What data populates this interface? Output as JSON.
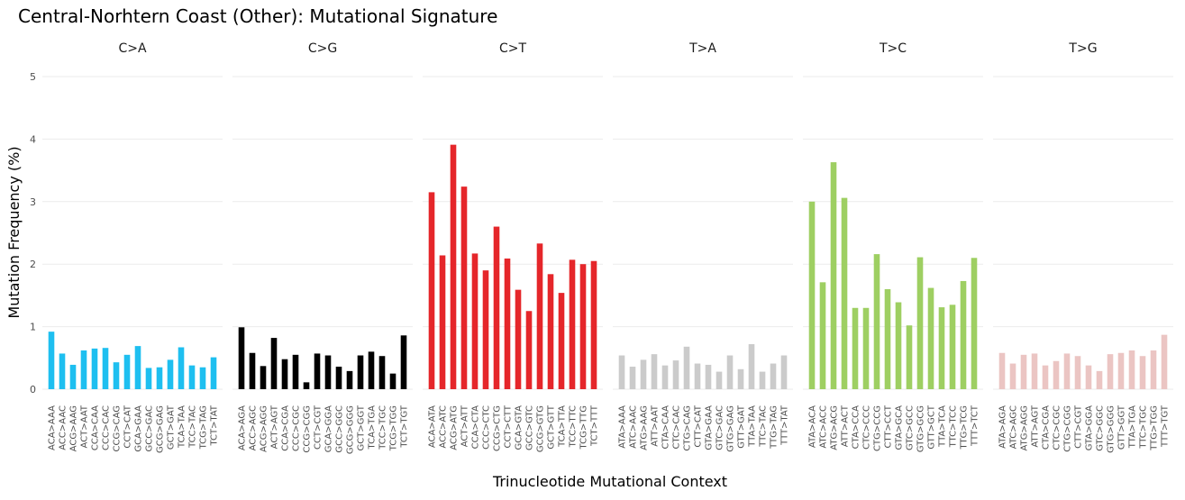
{
  "chart_data": {
    "type": "bar",
    "title": "Central-Norhtern Coast (Other): Mutational Signature",
    "xlabel": "Trinucleotide Mutational Context",
    "ylabel": "Mutation Frequency (%)",
    "ylim": [
      0,
      5
    ],
    "yticks": [
      "0",
      "1",
      "2",
      "3",
      "4",
      "5"
    ],
    "grid": true,
    "legend": "none",
    "panels": [
      {
        "name": "C>A",
        "color": "#1EBFF0",
        "categories": [
          "ACA>AAA",
          "ACC>AAC",
          "ACG>AAG",
          "ACT>AAT",
          "CCA>CAA",
          "CCC>CAC",
          "CCG>CAG",
          "CCT>CAT",
          "GCA>GAA",
          "GCC>GAC",
          "GCG>GAG",
          "GCT>GAT",
          "TCA>TAA",
          "TCC>TAC",
          "TCG>TAG",
          "TCT>TAT"
        ],
        "values": [
          0.92,
          0.57,
          0.39,
          0.62,
          0.65,
          0.66,
          0.43,
          0.55,
          0.69,
          0.34,
          0.35,
          0.47,
          0.67,
          0.38,
          0.35,
          0.51
        ]
      },
      {
        "name": "C>G",
        "color": "#000000",
        "categories": [
          "ACA>AGA",
          "ACC>AGC",
          "ACG>AGG",
          "ACT>AGT",
          "CCA>CGA",
          "CCC>CGC",
          "CCG>CGG",
          "CCT>CGT",
          "GCA>GGA",
          "GCC>GGC",
          "GCG>GGG",
          "GCT>GGT",
          "TCA>TGA",
          "TCC>TGC",
          "TCG>TGG",
          "TCT>TGT"
        ],
        "values": [
          0.99,
          0.58,
          0.37,
          0.82,
          0.48,
          0.55,
          0.11,
          0.57,
          0.54,
          0.36,
          0.29,
          0.54,
          0.6,
          0.53,
          0.25,
          0.86
        ]
      },
      {
        "name": "C>T",
        "color": "#E5262A",
        "categories": [
          "ACA>ATA",
          "ACC>ATC",
          "ACG>ATG",
          "ACT>ATT",
          "CCA>CTA",
          "CCC>CTC",
          "CCG>CTG",
          "CCT>CTT",
          "GCA>GTA",
          "GCC>GTC",
          "GCG>GTG",
          "GCT>GTT",
          "TCA>TTA",
          "TCC>TTC",
          "TCG>TTG",
          "TCT>TTT"
        ],
        "values": [
          3.15,
          2.14,
          3.91,
          3.24,
          2.17,
          1.9,
          2.6,
          2.09,
          1.59,
          1.25,
          2.33,
          1.84,
          1.54,
          2.07,
          2.0,
          2.05
        ]
      },
      {
        "name": "T>A",
        "color": "#CBCBCB",
        "categories": [
          "ATA>AAA",
          "ATC>AAC",
          "ATG>AAG",
          "ATT>AAT",
          "CTA>CAA",
          "CTC>CAC",
          "CTG>CAG",
          "CTT>CAT",
          "GTA>GAA",
          "GTC>GAC",
          "GTG>GAG",
          "GTT>GAT",
          "TTA>TAA",
          "TTC>TAC",
          "TTG>TAG",
          "TTT>TAT"
        ],
        "values": [
          0.54,
          0.36,
          0.47,
          0.56,
          0.38,
          0.46,
          0.68,
          0.41,
          0.39,
          0.28,
          0.54,
          0.32,
          0.72,
          0.28,
          0.41,
          0.54
        ]
      },
      {
        "name": "T>C",
        "color": "#9ECF62",
        "categories": [
          "ATA>ACA",
          "ATC>ACC",
          "ATG>ACG",
          "ATT>ACT",
          "CTA>CCA",
          "CTC>CCC",
          "CTG>CCG",
          "CTT>CCT",
          "GTA>GCA",
          "GTC>GCC",
          "GTG>GCG",
          "GTT>GCT",
          "TTA>TCA",
          "TTC>TCC",
          "TTG>TCG",
          "TTT>TCT"
        ],
        "values": [
          3.0,
          1.71,
          3.63,
          3.06,
          1.3,
          1.3,
          2.16,
          1.6,
          1.39,
          1.02,
          2.11,
          1.62,
          1.31,
          1.35,
          1.73,
          2.1
        ]
      },
      {
        "name": "T>G",
        "color": "#EBC5C3",
        "categories": [
          "ATA>AGA",
          "ATC>AGC",
          "ATG>AGG",
          "ATT>AGT",
          "CTA>CGA",
          "CTC>CGC",
          "CTG>CGG",
          "CTT>CGT",
          "GTA>GGA",
          "GTC>GGC",
          "GTG>GGG",
          "GTT>GGT",
          "TTA>TGA",
          "TTC>TGC",
          "TTG>TGG",
          "TTT>TGT"
        ],
        "values": [
          0.58,
          0.41,
          0.55,
          0.57,
          0.38,
          0.45,
          0.57,
          0.53,
          0.38,
          0.29,
          0.56,
          0.58,
          0.62,
          0.53,
          0.62,
          0.87
        ]
      }
    ]
  }
}
